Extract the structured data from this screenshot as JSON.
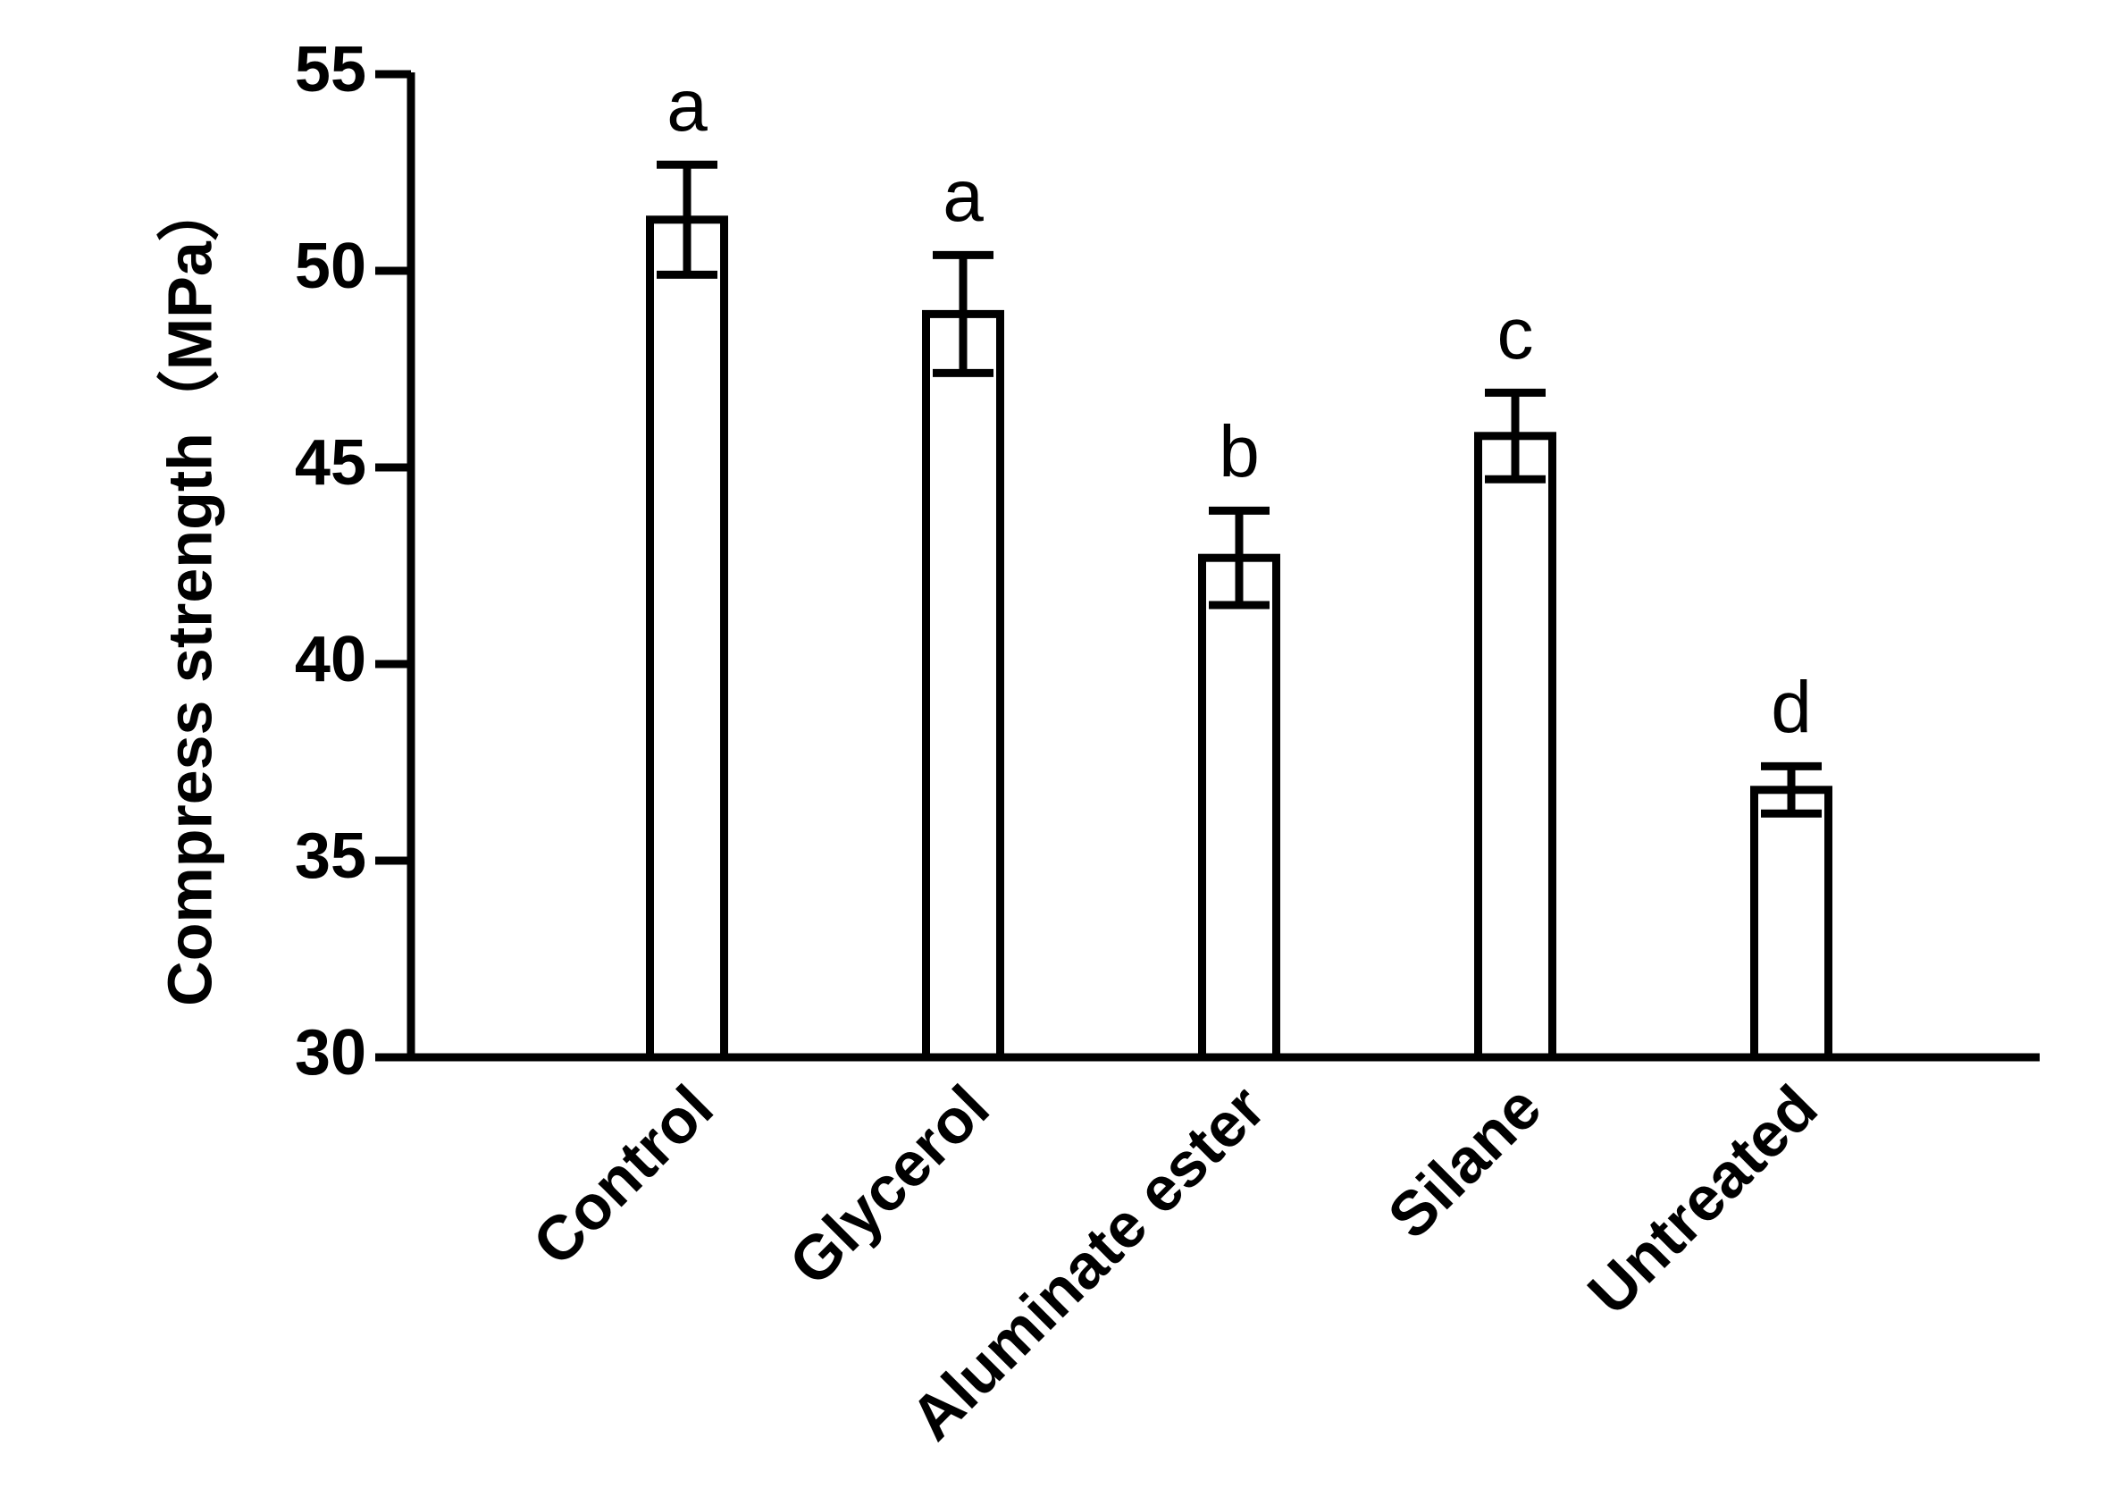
{
  "chart_data": {
    "type": "bar",
    "y_label": "Compress strength（MPa）",
    "categories": [
      "Control",
      "Glycerol",
      "Aluminate ester",
      "Silane",
      "Untreated"
    ],
    "values": [
      51.3,
      48.9,
      42.7,
      45.8,
      36.8
    ],
    "errors": [
      1.4,
      1.5,
      1.2,
      1.1,
      0.6
    ],
    "letters": [
      "a",
      "a",
      "b",
      "c",
      "d"
    ],
    "color": "#ffffff",
    "ylim": [
      30,
      55
    ],
    "yticks": [
      30,
      35,
      40,
      45,
      50,
      55
    ],
    "grid": false
  }
}
